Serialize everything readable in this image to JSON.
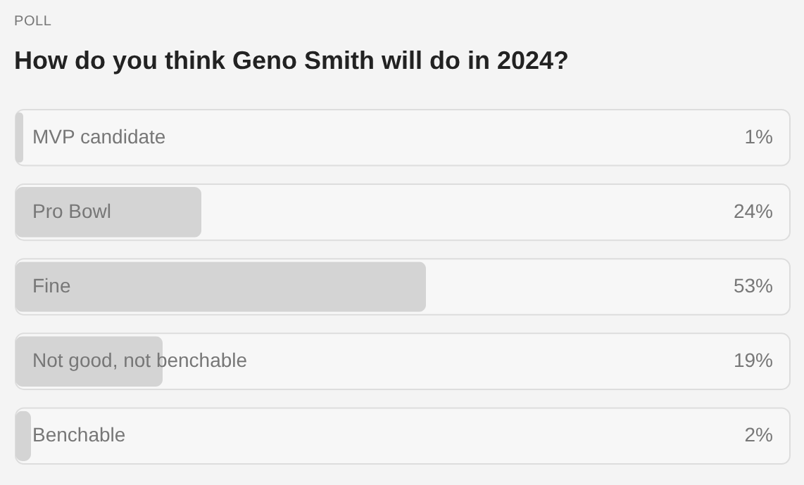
{
  "chart_data": {
    "type": "bar",
    "orientation": "horizontal",
    "subtitle": "POLL",
    "title": "How do you think Geno Smith will do in 2024?",
    "categories": [
      "MVP candidate",
      "Pro Bowl",
      "Fine",
      "Not good, not benchable",
      "Benchable"
    ],
    "values": [
      1,
      24,
      53,
      19,
      2
    ],
    "value_labels": [
      "1%",
      "24%",
      "53%",
      "19%",
      "2%"
    ],
    "color": "#d4d4d4",
    "xlim": [
      0,
      100
    ]
  }
}
